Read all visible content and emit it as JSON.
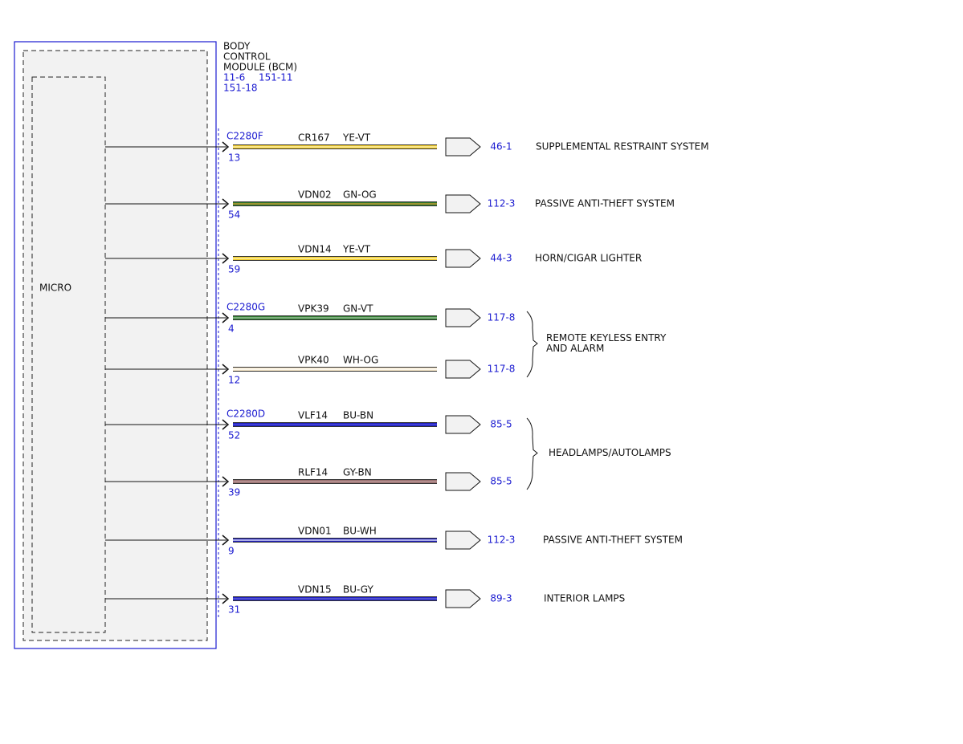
{
  "module": {
    "title_lines": [
      "BODY",
      "CONTROL",
      "MODULE (BCM)"
    ],
    "refs": [
      "11-6",
      "151-11",
      "151-18"
    ],
    "inner_label": "MICRO"
  },
  "branches": [
    {
      "destination": [
        "SUPPLEMENTAL RESTRAINT SYSTEM"
      ],
      "circuits": [
        {
          "connector": "C2280F",
          "pin": "13",
          "circuit": "CR167",
          "wire_color": "YE-VT",
          "ref": "46-1",
          "colors": [
            "#f2cc2a",
            "#fff7c0"
          ]
        }
      ]
    },
    {
      "destination": [
        "PASSIVE ANTI-THEFT SYSTEM"
      ],
      "circuits": [
        {
          "pin": "54",
          "circuit": "VDN02",
          "wire_color": "GN-OG",
          "ref": "112-3",
          "colors": [
            "#2e7d2e",
            "#e0a030"
          ]
        }
      ]
    },
    {
      "destination": [
        "HORN/CIGAR LIGHTER"
      ],
      "circuits": [
        {
          "pin": "59",
          "circuit": "VDN14",
          "wire_color": "YE-VT",
          "ref": "44-3",
          "colors": [
            "#f2cc2a",
            "#fff7c0"
          ]
        }
      ]
    },
    {
      "destination": [
        "REMOTE KEYLESS ENTRY",
        "AND ALARM"
      ],
      "circuits": [
        {
          "connector": "C2280G",
          "pin": "4",
          "circuit": "VPK39",
          "wire_color": "GN-VT",
          "ref": "117-8",
          "colors": [
            "#2e7d2e",
            "#b0d0b0"
          ]
        },
        {
          "pin": "12",
          "circuit": "VPK40",
          "wire_color": "WH-OG",
          "ref": "117-8",
          "colors": [
            "#f5e6c8",
            "#ffffff"
          ]
        }
      ]
    },
    {
      "destination": [
        "HEADLAMPS/AUTOLAMPS"
      ],
      "circuits": [
        {
          "connector": "C2280D",
          "pin": "52",
          "circuit": "VLF14",
          "wire_color": "BU-BN",
          "ref": "85-5",
          "colors": [
            "#2020c0",
            "#5050e0"
          ]
        },
        {
          "pin": "39",
          "circuit": "RLF14",
          "wire_color": "GY-BN",
          "ref": "85-5",
          "colors": [
            "#9a7070",
            "#c0a0a0"
          ]
        }
      ]
    },
    {
      "destination": [
        "PASSIVE ANTI-THEFT SYSTEM"
      ],
      "circuits": [
        {
          "pin": "9",
          "circuit": "VDN01",
          "wire_color": "BU-WH",
          "ref": "112-3",
          "colors": [
            "#2020c0",
            "#ffffff"
          ]
        }
      ]
    },
    {
      "destination": [
        "INTERIOR LAMPS"
      ],
      "circuits": [
        {
          "pin": "31",
          "circuit": "VDN15",
          "wire_color": "BU-GY",
          "ref": "89-3",
          "colors": [
            "#2020c0",
            "#7070e0"
          ]
        }
      ]
    }
  ]
}
